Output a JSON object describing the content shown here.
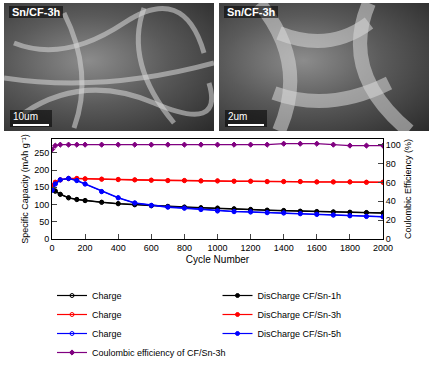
{
  "images": [
    {
      "label": "Sn/CF-3h",
      "scale_bar": "10um"
    },
    {
      "label": "Sn/CF-3h",
      "scale_bar": "2um"
    }
  ],
  "chart_data": {
    "type": "line",
    "x_label": "Cycle Number",
    "y_label": "Specific Capacity (mAh g⁻¹)",
    "y2_label": "Coulombic Efficiency (%)",
    "x": [
      1,
      20,
      50,
      100,
      150,
      200,
      300,
      400,
      500,
      600,
      700,
      800,
      900,
      1000,
      1100,
      1200,
      1300,
      1400,
      1500,
      1600,
      1700,
      1800,
      1900,
      2000
    ],
    "xlim": [
      0,
      2000
    ],
    "xticks": [
      0,
      200,
      400,
      600,
      800,
      1000,
      1200,
      1400,
      1600,
      1800,
      2000
    ],
    "ylim": [
      0,
      290
    ],
    "yticks": [
      0,
      50,
      100,
      150,
      200,
      250
    ],
    "y2lim": [
      0,
      106
    ],
    "y2ticks": [
      0,
      20,
      40,
      60,
      80,
      100
    ],
    "grid": false,
    "legend": "bottom",
    "series": [
      {
        "name": "Charge",
        "color": "#000000",
        "marker": "circle-open",
        "line_style": "solid",
        "values": [
          148,
          138,
          129,
          119,
          114,
          111,
          106,
          102,
          99,
          96,
          94,
          92,
          90,
          89,
          87,
          85,
          83,
          82,
          80,
          79,
          78,
          77,
          76,
          75
        ]
      },
      {
        "name": "DisCharge CF/Sn-1h",
        "color": "#000000",
        "marker": "circle",
        "line_style": "solid",
        "values": [
          150,
          140,
          130,
          120,
          115,
          112,
          107,
          103,
          100,
          97,
          95,
          93,
          91,
          90,
          88,
          86,
          84,
          83,
          81,
          80,
          79,
          78,
          77,
          76
        ]
      },
      {
        "name": "Charge",
        "color": "#ff0000",
        "marker": "circle-open",
        "line_style": "solid",
        "values": [
          153,
          164,
          171,
          175,
          175,
          174,
          173,
          172,
          171,
          170,
          169,
          169,
          168,
          168,
          167,
          167,
          166,
          166,
          166,
          165,
          165,
          165,
          164,
          164
        ]
      },
      {
        "name": "DisCharge CF/Sn-3h",
        "color": "#ff0000",
        "marker": "circle",
        "line_style": "solid",
        "values": [
          155,
          165,
          172,
          176,
          176,
          175,
          174,
          173,
          172,
          171,
          170,
          170,
          169,
          169,
          168,
          168,
          167,
          167,
          167,
          166,
          166,
          166,
          165,
          165
        ]
      },
      {
        "name": "Charge",
        "color": "#0000ff",
        "marker": "circle-open",
        "line_style": "solid",
        "values": [
          141,
          159,
          171,
          175,
          169,
          159,
          137,
          119,
          104,
          97,
          92,
          89,
          85,
          81,
          79,
          78,
          76,
          75,
          73,
          71,
          69,
          67,
          65,
          64
        ]
      },
      {
        "name": "DisCharge CF/Sn-5h",
        "color": "#0000ff",
        "marker": "circle",
        "line_style": "solid",
        "values": [
          142,
          160,
          172,
          176,
          170,
          160,
          138,
          120,
          105,
          98,
          93,
          90,
          86,
          82,
          80,
          79,
          77,
          76,
          74,
          72,
          70,
          68,
          66,
          65
        ]
      },
      {
        "name": "Coulombic efficiency of CF/Sn-3h",
        "color": "#800080",
        "marker": "diamond",
        "line_style": "solid",
        "axis": "y2",
        "values": [
          95,
          99,
          100,
          100,
          100,
          100,
          100,
          100,
          100,
          100,
          100,
          100,
          100,
          100,
          100,
          100,
          100,
          101,
          101,
          101,
          100,
          99,
          99,
          99
        ]
      }
    ]
  }
}
